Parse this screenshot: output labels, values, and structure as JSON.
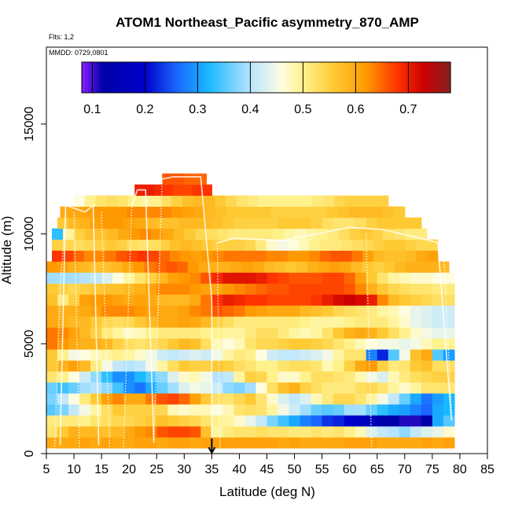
{
  "chart_data": {
    "type": "heatmap",
    "title": "ATOM1 Northeast_Pacific asymmetry_870_AMP",
    "flights_label": "Flts: 1,2",
    "mmdd_label": "MMDD: 0729,0801",
    "xlabel": "Latitude (deg N)",
    "ylabel": "Altitude (m)",
    "xlim": [
      5,
      85
    ],
    "ylim": [
      0,
      18500
    ],
    "xticks": [
      "5",
      "10",
      "15",
      "20",
      "25",
      "30",
      "35",
      "40",
      "45",
      "50",
      "55",
      "60",
      "65",
      "70",
      "75",
      "80",
      "85"
    ],
    "yticks": [
      "0",
      "5000",
      "10000",
      "15000"
    ],
    "colorbar": {
      "range": [
        0.08,
        0.78
      ],
      "tick_values": [
        0.1,
        0.2,
        0.3,
        0.4,
        0.5,
        0.6,
        0.7
      ],
      "tick_labels": [
        "0.1",
        "0.2",
        "0.3",
        "0.4",
        "0.5",
        "0.6",
        "0.7"
      ],
      "stops": [
        {
          "v": 0.08,
          "c": "#8a1fff"
        },
        {
          "v": 0.12,
          "c": "#0000a8"
        },
        {
          "v": 0.2,
          "c": "#0000cc"
        },
        {
          "v": 0.26,
          "c": "#1a66ff"
        },
        {
          "v": 0.32,
          "c": "#19b8ff"
        },
        {
          "v": 0.4,
          "c": "#b6e4ff"
        },
        {
          "v": 0.46,
          "c": "#fffde0"
        },
        {
          "v": 0.5,
          "c": "#fff28c"
        },
        {
          "v": 0.56,
          "c": "#ffc933"
        },
        {
          "v": 0.62,
          "c": "#ff9900"
        },
        {
          "v": 0.68,
          "c": "#ff3300"
        },
        {
          "v": 0.73,
          "c": "#cc0000"
        },
        {
          "v": 0.78,
          "c": "#862020"
        }
      ]
    },
    "annotation": {
      "type": "arrow",
      "latitude": 35,
      "altitude_top": 700,
      "altitude_bottom": 0
    },
    "altitude_bins": [
      {
        "alt": 500,
        "lat_min": 5.0,
        "lat_max": 79.0,
        "values": [
          0.6,
          0.6,
          0.6,
          0.61,
          0.6,
          0.61,
          0.6,
          0.6,
          0.61,
          0.61,
          0.6,
          0.61,
          0.61,
          0.6,
          0.61,
          0.61,
          0.61,
          0.61,
          0.61,
          0.61,
          0.61,
          0.6,
          0.61,
          0.6,
          0.6,
          0.6,
          0.6,
          0.61,
          0.61,
          0.61,
          0.6,
          0.6,
          0.6,
          0.6,
          0.61,
          0.6,
          0.61
        ]
      },
      {
        "alt": 1000,
        "lat_min": 5.0,
        "lat_max": 79.0,
        "values": [
          0.52,
          0.56,
          0.59,
          0.58,
          0.58,
          0.57,
          0.58,
          0.6,
          0.62,
          0.63,
          0.66,
          0.67,
          0.67,
          0.66,
          0.57,
          0.49,
          0.51,
          0.52,
          0.52,
          0.53,
          0.52,
          0.52,
          0.51,
          0.51,
          0.52,
          0.51,
          0.52,
          0.5,
          0.48,
          0.43,
          0.41,
          0.4,
          0.38,
          0.41,
          0.43,
          0.44,
          0.47
        ]
      },
      {
        "alt": 1500,
        "lat_min": 5.0,
        "lat_max": 79.0,
        "values": [
          0.51,
          0.51,
          0.51,
          0.5,
          0.52,
          0.53,
          0.54,
          0.54,
          0.55,
          0.56,
          0.57,
          0.56,
          0.55,
          0.54,
          0.52,
          0.5,
          0.49,
          0.47,
          0.44,
          0.41,
          0.37,
          0.34,
          0.31,
          0.28,
          0.26,
          0.23,
          0.22,
          0.2,
          0.18,
          0.16,
          0.13,
          0.12,
          0.11,
          0.11,
          0.12,
          0.31,
          0.35
        ]
      },
      {
        "alt": 2000,
        "lat_min": 5.0,
        "lat_max": 79.0,
        "values": [
          0.35,
          0.37,
          0.41,
          0.45,
          0.49,
          0.53,
          0.56,
          0.55,
          0.55,
          0.55,
          0.54,
          0.48,
          0.47,
          0.48,
          0.48,
          0.46,
          0.48,
          0.52,
          0.53,
          0.52,
          0.49,
          0.45,
          0.42,
          0.39,
          0.36,
          0.35,
          0.36,
          0.39,
          0.39,
          0.36,
          0.33,
          0.31,
          0.3,
          0.28,
          0.26,
          0.31,
          0.32
        ]
      },
      {
        "alt": 2500,
        "lat_min": 5.0,
        "lat_max": 79.0,
        "values": [
          0.37,
          0.41,
          0.46,
          0.51,
          0.56,
          0.61,
          0.63,
          0.6,
          0.6,
          0.64,
          0.66,
          0.67,
          0.65,
          0.61,
          0.56,
          0.53,
          0.52,
          0.54,
          0.56,
          0.52,
          0.47,
          0.43,
          0.41,
          0.43,
          0.48,
          0.51,
          0.54,
          0.54,
          0.52,
          0.49,
          0.45,
          0.41,
          0.36,
          0.31,
          0.27,
          0.3,
          0.32
        ]
      },
      {
        "alt": 3000,
        "lat_min": 5.0,
        "lat_max": 79.0,
        "values": [
          0.36,
          0.34,
          0.36,
          0.39,
          0.4,
          0.38,
          0.34,
          0.29,
          0.27,
          0.31,
          0.36,
          0.39,
          0.43,
          0.45,
          0.44,
          0.42,
          0.38,
          0.37,
          0.39,
          0.46,
          0.53,
          0.57,
          0.59,
          0.55,
          0.53,
          0.51,
          0.51,
          0.51,
          0.53,
          0.54,
          0.52,
          0.49,
          0.47,
          0.49,
          0.52,
          0.52,
          0.52
        ]
      },
      {
        "alt": 3500,
        "lat_min": 5.0,
        "lat_max": 79.0,
        "values": [
          0.52,
          0.5,
          0.46,
          0.42,
          0.38,
          0.33,
          0.29,
          0.29,
          0.32,
          0.35,
          0.38,
          0.43,
          0.47,
          0.48,
          0.45,
          0.4,
          0.41,
          0.49,
          0.55,
          0.54,
          0.5,
          0.47,
          0.47,
          0.5,
          0.53,
          0.53,
          0.52,
          0.51,
          0.48,
          0.45,
          0.43,
          0.48,
          0.51,
          0.53,
          0.54,
          0.55,
          0.55
        ]
      },
      {
        "alt": 4000,
        "lat_min": 5.0,
        "lat_max": 79.0,
        "values": [
          0.56,
          0.59,
          0.61,
          0.58,
          0.51,
          0.45,
          0.41,
          0.4,
          0.41,
          0.45,
          0.49,
          0.53,
          0.56,
          0.55,
          0.55,
          0.56,
          0.55,
          0.53,
          0.52,
          0.5,
          0.5,
          0.52,
          0.53,
          0.53,
          0.52,
          0.48,
          0.5,
          0.55,
          0.6,
          0.62,
          0.55,
          0.51,
          0.52,
          0.56,
          0.57,
          0.53,
          0.53
        ]
      },
      {
        "alt": 4500,
        "lat_min": 5.0,
        "lat_max": 79.0,
        "values": [
          0.56,
          0.5,
          0.45,
          0.46,
          0.48,
          0.49,
          0.5,
          0.49,
          0.47,
          0.45,
          0.42,
          0.41,
          0.42,
          0.43,
          0.42,
          0.45,
          0.49,
          0.51,
          0.5,
          0.46,
          0.42,
          0.41,
          0.41,
          0.42,
          0.43,
          0.45,
          0.49,
          0.52,
          0.52,
          0.28,
          0.22,
          0.35,
          0.45,
          0.57,
          0.6,
          0.35,
          0.3
        ]
      },
      {
        "alt": 5000,
        "lat_min": 5.0,
        "lat_max": 79.0,
        "values": [
          0.64,
          0.62,
          0.6,
          0.59,
          0.59,
          0.58,
          0.55,
          0.53,
          0.52,
          0.53,
          0.54,
          0.56,
          0.58,
          0.57,
          0.53,
          0.48,
          0.46,
          0.48,
          0.52,
          0.54,
          0.54,
          0.55,
          0.56,
          0.56,
          0.55,
          0.54,
          0.52,
          0.5,
          0.48,
          0.46,
          0.45,
          0.45,
          0.44,
          0.45,
          0.48,
          0.5,
          0.5
        ]
      },
      {
        "alt": 5500,
        "lat_min": 5.0,
        "lat_max": 79.0,
        "values": [
          0.64,
          0.63,
          0.61,
          0.58,
          0.55,
          0.51,
          0.49,
          0.47,
          0.48,
          0.5,
          0.51,
          0.51,
          0.51,
          0.51,
          0.5,
          0.5,
          0.49,
          0.49,
          0.51,
          0.53,
          0.53,
          0.51,
          0.49,
          0.48,
          0.49,
          0.52,
          0.56,
          0.59,
          0.6,
          0.59,
          0.56,
          0.53,
          0.5,
          0.47,
          0.45,
          0.44,
          0.44
        ]
      },
      {
        "alt": 6000,
        "lat_min": 5.0,
        "lat_max": 79.0,
        "values": [
          0.6,
          0.59,
          0.58,
          0.58,
          0.56,
          0.54,
          0.53,
          0.54,
          0.56,
          0.58,
          0.6,
          0.6,
          0.61,
          0.6,
          0.58,
          0.55,
          0.53,
          0.51,
          0.51,
          0.51,
          0.51,
          0.51,
          0.51,
          0.5,
          0.49,
          0.49,
          0.49,
          0.5,
          0.51,
          0.51,
          0.51,
          0.49,
          0.47,
          0.44,
          0.43,
          0.42,
          0.42
        ]
      },
      {
        "alt": 6500,
        "lat_min": 5.0,
        "lat_max": 79.0,
        "values": [
          0.6,
          0.59,
          0.59,
          0.6,
          0.61,
          0.63,
          0.63,
          0.63,
          0.62,
          0.61,
          0.6,
          0.6,
          0.61,
          0.63,
          0.64,
          0.66,
          0.65,
          0.64,
          0.62,
          0.61,
          0.6,
          0.6,
          0.6,
          0.58,
          0.57,
          0.56,
          0.54,
          0.53,
          0.52,
          0.51,
          0.49,
          0.48,
          0.46,
          0.44,
          0.43,
          0.42,
          0.42
        ]
      },
      {
        "alt": 7000,
        "lat_min": 5.0,
        "lat_max": 79.0,
        "values": [
          0.57,
          0.51,
          0.55,
          0.61,
          0.62,
          0.62,
          0.61,
          0.6,
          0.61,
          0.6,
          0.58,
          0.58,
          0.58,
          0.6,
          0.64,
          0.68,
          0.7,
          0.69,
          0.68,
          0.68,
          0.67,
          0.67,
          0.67,
          0.67,
          0.68,
          0.7,
          0.72,
          0.73,
          0.72,
          0.7,
          0.63,
          0.58,
          0.56,
          0.55,
          0.54,
          0.53,
          0.53
        ]
      },
      {
        "alt": 7500,
        "lat_min": 5.0,
        "lat_max": 79.0,
        "values": [
          0.56,
          0.55,
          0.54,
          0.55,
          0.56,
          0.57,
          0.57,
          0.58,
          0.59,
          0.61,
          0.63,
          0.63,
          0.63,
          0.62,
          0.61,
          0.6,
          0.62,
          0.63,
          0.64,
          0.65,
          0.66,
          0.66,
          0.67,
          0.67,
          0.67,
          0.67,
          0.67,
          0.66,
          0.63,
          0.59,
          0.56,
          0.54,
          0.53,
          0.52,
          0.52,
          0.51,
          0.51
        ]
      },
      {
        "alt": 8000,
        "lat_min": 5.0,
        "lat_max": 79.0,
        "values": [
          0.39,
          0.39,
          0.39,
          0.4,
          0.41,
          0.43,
          0.46,
          0.49,
          0.52,
          0.55,
          0.58,
          0.61,
          0.62,
          0.63,
          0.66,
          0.69,
          0.71,
          0.71,
          0.71,
          0.7,
          0.68,
          0.67,
          0.66,
          0.66,
          0.66,
          0.67,
          0.67,
          0.65,
          0.61,
          0.56,
          0.52,
          0.49,
          0.48,
          0.47,
          0.47,
          0.46,
          0.46
        ]
      },
      {
        "alt": 8500,
        "lat_min": 5.0,
        "lat_max": 78.0,
        "values": [
          0.62,
          0.61,
          0.59,
          0.58,
          0.57,
          0.57,
          0.58,
          0.6,
          0.62,
          0.64,
          0.65,
          0.66,
          0.65,
          0.62,
          0.6,
          0.59,
          0.59,
          0.6,
          0.61,
          0.6,
          0.58,
          0.57,
          0.56,
          0.57,
          0.59,
          0.6,
          0.61,
          0.6,
          0.58,
          0.56,
          0.55,
          0.56,
          0.58,
          0.59,
          0.59,
          0.59,
          0.58
        ]
      },
      {
        "alt": 9000,
        "lat_min": 6.0,
        "lat_max": 76.0,
        "values": [
          0.68,
          0.67,
          0.65,
          0.63,
          0.63,
          0.64,
          0.66,
          0.67,
          0.68,
          0.67,
          0.65,
          0.63,
          0.62,
          0.61,
          0.62,
          0.63,
          0.64,
          0.64,
          0.64,
          0.64,
          0.63,
          0.63,
          0.62,
          0.62,
          0.63,
          0.65,
          0.66,
          0.66,
          0.64,
          0.61,
          0.58,
          0.57,
          0.57,
          0.58,
          0.6,
          0.61
        ]
      },
      {
        "alt": 9500,
        "lat_min": 6.0,
        "lat_max": 76.0,
        "values": [
          0.55,
          0.54,
          0.53,
          0.54,
          0.55,
          0.56,
          0.55,
          0.53,
          0.52,
          0.53,
          0.55,
          0.57,
          0.58,
          0.57,
          0.56,
          0.55,
          0.55,
          0.55,
          0.54,
          0.51,
          0.47,
          0.45,
          0.46,
          0.48,
          0.5,
          0.51,
          0.51,
          0.52,
          0.53,
          0.54,
          0.55,
          0.56,
          0.56,
          0.55,
          0.54,
          0.54
        ]
      },
      {
        "alt": 10000,
        "lat_min": 6.0,
        "lat_max": 74.0,
        "values": [
          0.33,
          0.49,
          0.55,
          0.57,
          0.57,
          0.58,
          0.6,
          0.62,
          0.63,
          0.62,
          0.6,
          0.58,
          0.56,
          0.54,
          0.53,
          0.52,
          0.51,
          0.51,
          0.51,
          0.51,
          0.5,
          0.49,
          0.48,
          0.49,
          0.5,
          0.51,
          0.53,
          0.55,
          0.56,
          0.55,
          0.53,
          0.52,
          0.51,
          0.51
        ]
      },
      {
        "alt": 10500,
        "lat_min": 7.0,
        "lat_max": 73.0,
        "values": [
          0.56,
          0.58,
          0.59,
          0.61,
          0.62,
          0.62,
          0.61,
          0.6,
          0.58,
          0.57,
          0.57,
          0.58,
          0.58,
          0.58,
          0.57,
          0.56,
          0.55,
          0.55,
          0.55,
          0.55,
          0.56,
          0.56,
          0.56,
          0.55,
          0.53,
          0.52,
          0.52,
          0.53,
          0.55,
          0.56,
          0.56,
          0.56,
          0.56
        ]
      },
      {
        "alt": 11000,
        "lat_min": 7.5,
        "lat_max": 70.0,
        "values": [
          0.6,
          0.6,
          0.61,
          0.62,
          0.62,
          0.62,
          0.63,
          0.63,
          0.63,
          0.63,
          0.62,
          0.61,
          0.6,
          0.58,
          0.57,
          0.56,
          0.56,
          0.56,
          0.56,
          0.55,
          0.55,
          0.55,
          0.55,
          0.55,
          0.56,
          0.57,
          0.58,
          0.58,
          0.58,
          0.57,
          0.56
        ]
      },
      {
        "alt": 11500,
        "lat_min": 10.0,
        "lat_max": 67.0,
        "values": [
          0.46,
          0.5,
          0.52,
          0.53,
          0.52,
          0.5,
          0.49,
          0.5,
          0.53,
          0.55,
          0.57,
          0.58,
          0.58,
          0.56,
          0.54,
          0.52,
          0.51,
          0.5,
          0.5,
          0.5,
          0.5,
          0.5,
          0.51,
          0.52,
          0.54,
          0.55,
          0.55,
          0.55,
          0.55
        ]
      },
      {
        "alt": 12000,
        "lat_min": 21.0,
        "lat_max": 35.0,
        "values": [
          0.7,
          0.7,
          0.69,
          0.68,
          0.67,
          0.67,
          0.68,
          0.68
        ]
      },
      {
        "alt": 12500,
        "lat_min": 26.0,
        "lat_max": 34.0,
        "values": [
          0.66,
          0.66,
          0.65,
          0.65
        ]
      }
    ]
  }
}
